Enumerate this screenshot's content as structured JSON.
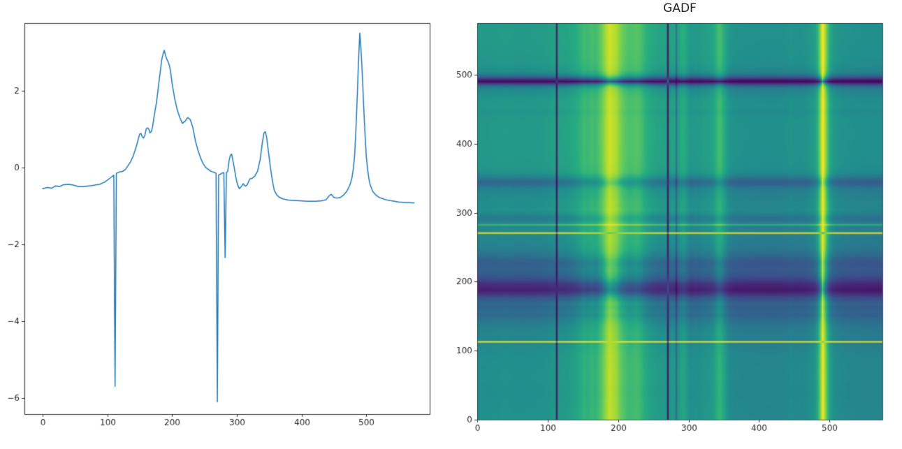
{
  "figure": {
    "background": "#ffffff"
  },
  "chart_data": [
    {
      "type": "line",
      "title": "",
      "xlabel": "",
      "ylabel": "",
      "xlim": [
        -28,
        598
      ],
      "ylim": [
        -6.42,
        3.76
      ],
      "xticks": {
        "values": [
          0,
          100,
          200,
          300,
          400,
          500
        ],
        "labels": [
          "0",
          "100",
          "200",
          "300",
          "400",
          "500"
        ]
      },
      "yticks": {
        "values": [
          2,
          0,
          -2,
          -4,
          -6
        ],
        "labels": [
          "2",
          "0",
          "−2",
          "−4",
          "−6"
        ]
      },
      "line_color": "#1f77b4",
      "grid": false,
      "keypoints": [
        [
          0,
          -0.55
        ],
        [
          8,
          -0.52
        ],
        [
          14,
          -0.54
        ],
        [
          20,
          -0.48
        ],
        [
          26,
          -0.5
        ],
        [
          32,
          -0.45
        ],
        [
          40,
          -0.44
        ],
        [
          48,
          -0.46
        ],
        [
          56,
          -0.5
        ],
        [
          64,
          -0.5
        ],
        [
          72,
          -0.48
        ],
        [
          80,
          -0.46
        ],
        [
          88,
          -0.44
        ],
        [
          96,
          -0.38
        ],
        [
          104,
          -0.28
        ],
        [
          110,
          -0.2
        ],
        [
          111,
          -0.18
        ],
        [
          112,
          -5.7
        ],
        [
          113,
          -0.16
        ],
        [
          118,
          -0.12
        ],
        [
          124,
          -0.1
        ],
        [
          128,
          -0.05
        ],
        [
          132,
          0.05
        ],
        [
          136,
          0.15
        ],
        [
          140,
          0.3
        ],
        [
          144,
          0.5
        ],
        [
          148,
          0.75
        ],
        [
          151,
          0.93
        ],
        [
          154,
          0.8
        ],
        [
          157,
          0.75
        ],
        [
          160,
          1.0
        ],
        [
          163,
          1.05
        ],
        [
          166,
          0.9
        ],
        [
          169,
          0.95
        ],
        [
          172,
          1.3
        ],
        [
          176,
          1.7
        ],
        [
          180,
          2.25
        ],
        [
          184,
          2.8
        ],
        [
          186,
          2.95
        ],
        [
          188,
          3.05
        ],
        [
          191,
          2.85
        ],
        [
          194,
          2.75
        ],
        [
          197,
          2.6
        ],
        [
          200,
          2.2
        ],
        [
          204,
          1.8
        ],
        [
          208,
          1.5
        ],
        [
          212,
          1.3
        ],
        [
          216,
          1.15
        ],
        [
          220,
          1.2
        ],
        [
          224,
          1.3
        ],
        [
          228,
          1.25
        ],
        [
          232,
          1.05
        ],
        [
          236,
          0.7
        ],
        [
          240,
          0.45
        ],
        [
          244,
          0.25
        ],
        [
          248,
          0.1
        ],
        [
          252,
          0.0
        ],
        [
          256,
          -0.05
        ],
        [
          260,
          -0.1
        ],
        [
          264,
          -0.12
        ],
        [
          268,
          -0.15
        ],
        [
          269,
          -0.16
        ],
        [
          270,
          -6.1
        ],
        [
          271,
          -0.2
        ],
        [
          274,
          -0.18
        ],
        [
          278,
          -0.14
        ],
        [
          281,
          -0.13
        ],
        [
          282,
          -2.35
        ],
        [
          283,
          -0.15
        ],
        [
          286,
          -0.1
        ],
        [
          289,
          0.3
        ],
        [
          292,
          0.35
        ],
        [
          295,
          0.1
        ],
        [
          298,
          -0.2
        ],
        [
          301,
          -0.45
        ],
        [
          304,
          -0.55
        ],
        [
          307,
          -0.5
        ],
        [
          310,
          -0.42
        ],
        [
          313,
          -0.5
        ],
        [
          316,
          -0.45
        ],
        [
          320,
          -0.3
        ],
        [
          324,
          -0.28
        ],
        [
          328,
          -0.22
        ],
        [
          332,
          -0.1
        ],
        [
          336,
          0.2
        ],
        [
          340,
          0.7
        ],
        [
          343,
          1.0
        ],
        [
          346,
          0.8
        ],
        [
          349,
          0.4
        ],
        [
          352,
          0.0
        ],
        [
          355,
          -0.35
        ],
        [
          358,
          -0.6
        ],
        [
          362,
          -0.72
        ],
        [
          366,
          -0.78
        ],
        [
          372,
          -0.82
        ],
        [
          380,
          -0.85
        ],
        [
          390,
          -0.86
        ],
        [
          400,
          -0.87
        ],
        [
          410,
          -0.88
        ],
        [
          420,
          -0.88
        ],
        [
          430,
          -0.87
        ],
        [
          438,
          -0.84
        ],
        [
          443,
          -0.73
        ],
        [
          446,
          -0.7
        ],
        [
          450,
          -0.78
        ],
        [
          455,
          -0.8
        ],
        [
          460,
          -0.78
        ],
        [
          465,
          -0.72
        ],
        [
          470,
          -0.62
        ],
        [
          475,
          -0.45
        ],
        [
          479,
          -0.2
        ],
        [
          482,
          0.3
        ],
        [
          485,
          1.3
        ],
        [
          487,
          2.3
        ],
        [
          489,
          3.2
        ],
        [
          490,
          3.5
        ],
        [
          491,
          3.3
        ],
        [
          493,
          2.8
        ],
        [
          495,
          2.0
        ],
        [
          497,
          1.2
        ],
        [
          500,
          0.3
        ],
        [
          503,
          -0.2
        ],
        [
          506,
          -0.45
        ],
        [
          510,
          -0.62
        ],
        [
          515,
          -0.72
        ],
        [
          520,
          -0.78
        ],
        [
          530,
          -0.84
        ],
        [
          540,
          -0.87
        ],
        [
          550,
          -0.9
        ],
        [
          560,
          -0.91
        ],
        [
          570,
          -0.92
        ],
        [
          574,
          -0.92
        ]
      ]
    },
    {
      "type": "heatmap",
      "title": "GADF",
      "colormap": "viridis",
      "vmin": -1,
      "vmax": 1,
      "extent": [
        0,
        575,
        0,
        575
      ],
      "origin": "lower",
      "xticks": {
        "values": [
          0,
          100,
          200,
          300,
          400,
          500
        ],
        "labels": [
          "0",
          "100",
          "200",
          "300",
          "400",
          "500"
        ]
      },
      "yticks": {
        "values": [
          0,
          100,
          200,
          300,
          400,
          500
        ],
        "labels": [
          "0",
          "100",
          "200",
          "300",
          "400",
          "500"
        ]
      },
      "derivation": "GADF[i][j] = sin(phi_i - phi_j), phi = arccos of min-max scaled series from chart 0",
      "sample_step": 2
    }
  ]
}
